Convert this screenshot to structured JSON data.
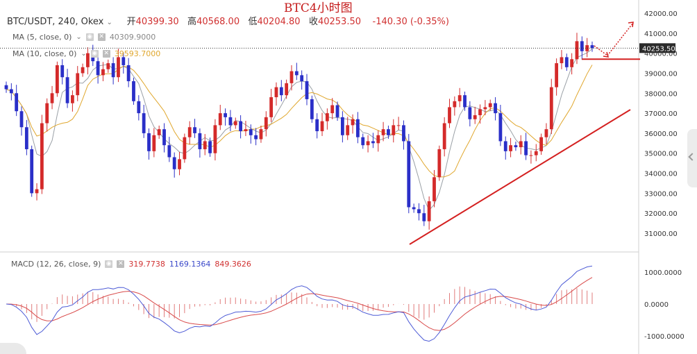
{
  "header": {
    "symbol": "BTC/USDT, 240, Okex",
    "open_label": "开",
    "open": "40399.30",
    "high_label": "高",
    "high": "40568.00",
    "low_label": "低",
    "low": "40204.80",
    "close_label": "收",
    "close": "40253.50",
    "change": "-140.30 (-0.35%)"
  },
  "title": "BTC4小时图",
  "indicators": {
    "ma5": {
      "label": "MA (5, close, 0)",
      "value": "40309.9000",
      "color": "#9aa0a6"
    },
    "ma10": {
      "label": "MA (10, close, 0)",
      "value": "39593.7000",
      "color": "#e0a72e"
    },
    "macd": {
      "label": "MACD (12, 26, close, 9)",
      "hist": "319.7738",
      "macd": "1169.1364",
      "signal": "849.3626"
    }
  },
  "colors": {
    "up": "#d42a2a",
    "down": "#2a2fc8",
    "annotation": "#d42020",
    "macd_line": "#4d5bd6",
    "signal_line": "#d94a4a"
  },
  "chart_data": [
    {
      "type": "candlestick",
      "title": "BTC4小时图",
      "price_axis": {
        "ticks": [
          "42000.00",
          "41000.00",
          "40000.00",
          "39000.00",
          "38000.00",
          "37000.00",
          "36000.00",
          "35000.00",
          "34000.00",
          "33000.00",
          "32000.00",
          "31000.00"
        ],
        "range": [
          30300,
          42200
        ],
        "current_price": "40253.50"
      },
      "closes": [
        38200,
        38000,
        37100,
        36300,
        35200,
        33000,
        33200,
        36500,
        37500,
        38000,
        39400,
        38800,
        37500,
        37900,
        39000,
        39300,
        40000,
        39600,
        38900,
        39200,
        39500,
        38800,
        39800,
        39400,
        38600,
        37600,
        37000,
        36000,
        35100,
        35900,
        36200,
        35400,
        34800,
        34200,
        34700,
        35800,
        36300,
        36000,
        35200,
        35600,
        35000,
        36400,
        37000,
        36800,
        36400,
        36600,
        36100,
        36200,
        35900,
        35700,
        36200,
        36800,
        37800,
        38300,
        37900,
        38500,
        39100,
        38900,
        38600,
        37700,
        36700,
        36100,
        36600,
        37000,
        37400,
        36800,
        35900,
        36400,
        36700,
        35800,
        35400,
        35600,
        35500,
        35900,
        36200,
        35900,
        36400,
        36400,
        35600,
        32300,
        32200,
        32000,
        31600,
        32600,
        33800,
        35200,
        36500,
        37300,
        37600,
        37900,
        37300,
        36700,
        36900,
        37200,
        37300,
        37500,
        37000,
        35600,
        35100,
        35400,
        35300,
        35600,
        34900,
        34900,
        35100,
        35800,
        36200,
        38300,
        39500,
        39800,
        39300,
        39700,
        40600,
        40100,
        40400,
        40250
      ],
      "ma5_end": 40309.9,
      "ma10_end": 39593.7
    },
    {
      "type": "bar",
      "title": "MACD (12, 26, close, 9)",
      "y_axis": {
        "ticks": [
          "1000.0000",
          "0.0000",
          "-1000.0000"
        ]
      },
      "hist_last": 319.7738,
      "macd_last": 1169.1364,
      "signal_last": 849.3626
    }
  ]
}
